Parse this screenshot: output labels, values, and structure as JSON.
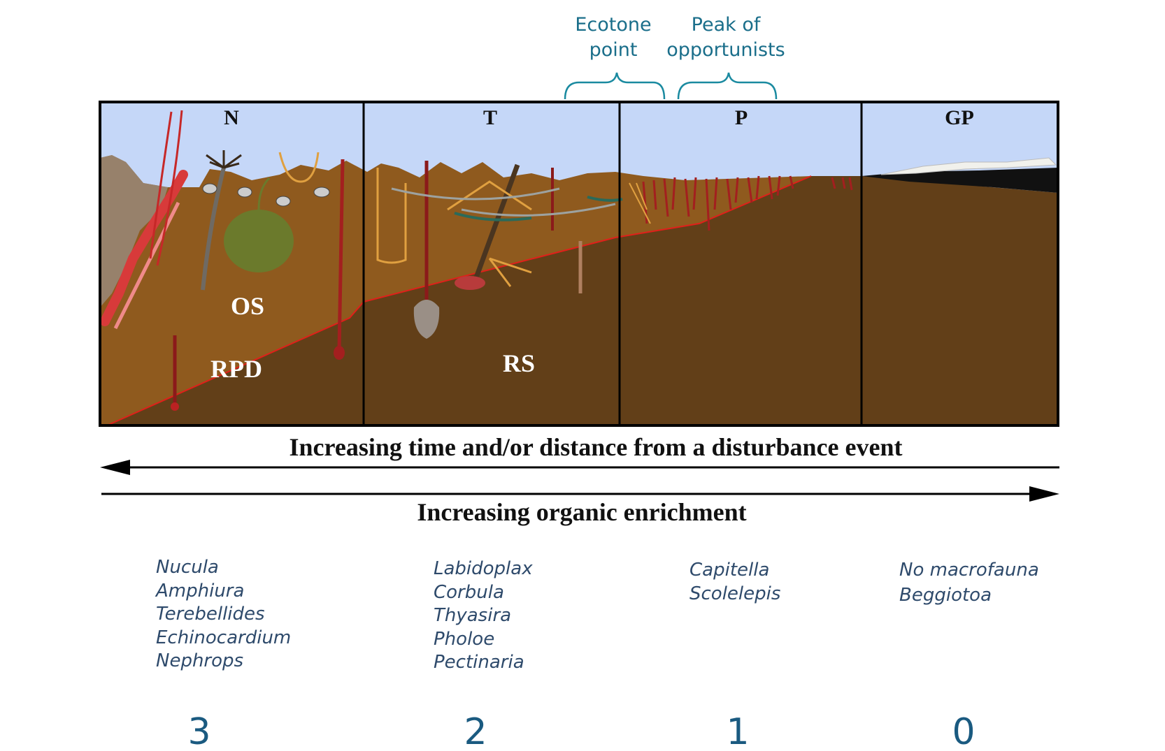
{
  "annotations": {
    "ecotone": [
      "Ecotone",
      "point"
    ],
    "peak": [
      "Peak of",
      "opportunists"
    ]
  },
  "zones": [
    {
      "label": "N"
    },
    {
      "label": "T"
    },
    {
      "label": "P"
    },
    {
      "label": "GP"
    }
  ],
  "layers": {
    "os": "OS",
    "rpd": "RPD",
    "rs": "RS"
  },
  "axes": {
    "time": "Increasing time and/or distance from a disturbance event",
    "enrichment": "Increasing organic enrichment"
  },
  "species": [
    {
      "items": [
        "Nucula",
        "Amphiura",
        "Terebellides",
        "Echinocardium",
        "Nephrops"
      ]
    },
    {
      "items": [
        "Labidoplax",
        "Corbula",
        "Thyasira",
        "Pholoe",
        "Pectinaria"
      ]
    },
    {
      "items": [
        "Capitella",
        "Scolelepis"
      ]
    },
    {
      "items": [
        "No macrofauna",
        "Beggiotoa"
      ]
    }
  ],
  "scores": [
    "3",
    "2",
    "1",
    "0"
  ],
  "colors": {
    "water": "#c5d7f8",
    "oxic_sediment": "#8f5a1e",
    "reduced_sediment": "#623f18",
    "rpd_line": "#e0201a",
    "annotation": "#1a6e8a",
    "species_text": "#2e4a6b"
  }
}
